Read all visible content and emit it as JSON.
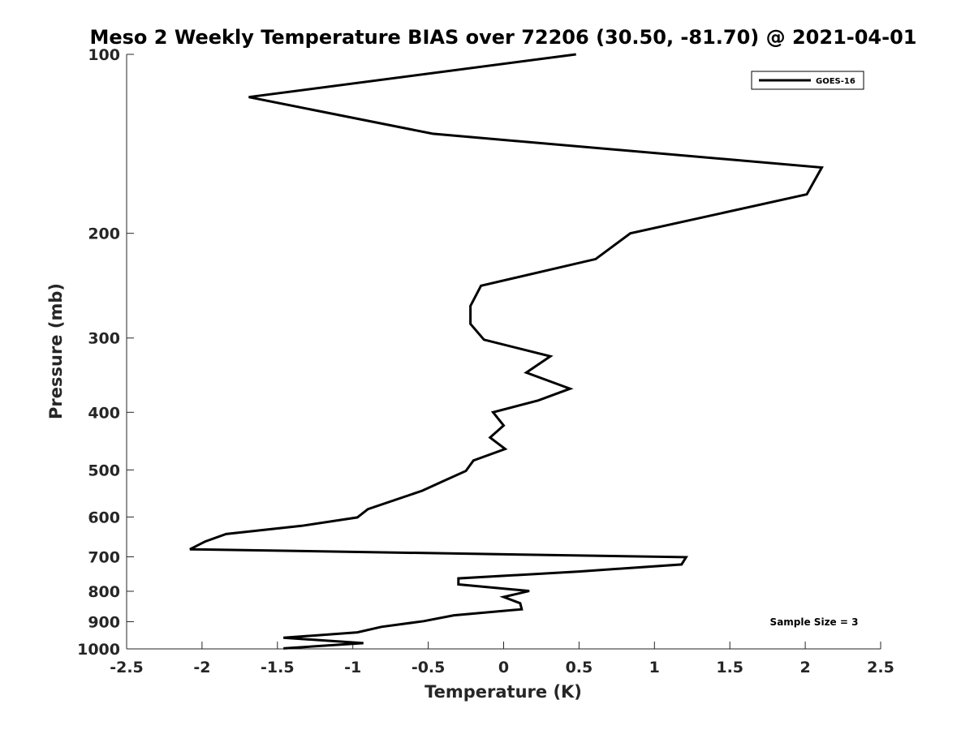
{
  "chart_data": {
    "type": "line",
    "title": "Meso 2 Weekly Temperature BIAS over 72206 (30.50, -81.70) @ 2021-04-01",
    "xlabel": "Temperature (K)",
    "ylabel": "Pressure (mb)",
    "xlim": [
      -2.5,
      2.5
    ],
    "ylim": [
      100,
      1000
    ],
    "y_scale": "log",
    "y_reversed": true,
    "grid": false,
    "legend_position": "top-right",
    "x_ticks": [
      -2.5,
      -2,
      -1.5,
      -1,
      -0.5,
      0,
      0.5,
      1,
      1.5,
      2,
      2.5
    ],
    "x_tick_labels": [
      "-2.5",
      "-2",
      "-1.5",
      "-1",
      "-0.5",
      "0",
      "0.5",
      "1",
      "1.5",
      "2",
      "2.5"
    ],
    "y_ticks": [
      100,
      200,
      300,
      400,
      500,
      600,
      700,
      800,
      900,
      1000
    ],
    "y_tick_labels": [
      "100",
      "200",
      "300",
      "400",
      "500",
      "600",
      "700",
      "800",
      "900",
      "1000"
    ],
    "annotation": "Sample Size = 3",
    "series": [
      {
        "name": "GOES-16",
        "color": "#000000",
        "points": [
          {
            "x": 0.48,
            "y": 100
          },
          {
            "x": -1.69,
            "y": 118
          },
          {
            "x": -0.47,
            "y": 136
          },
          {
            "x": 2.11,
            "y": 155
          },
          {
            "x": 2.01,
            "y": 172
          },
          {
            "x": 0.84,
            "y": 200
          },
          {
            "x": 0.61,
            "y": 221
          },
          {
            "x": -0.15,
            "y": 245
          },
          {
            "x": -0.22,
            "y": 265
          },
          {
            "x": -0.22,
            "y": 284
          },
          {
            "x": -0.13,
            "y": 302
          },
          {
            "x": 0.31,
            "y": 322
          },
          {
            "x": 0.15,
            "y": 343
          },
          {
            "x": 0.44,
            "y": 365
          },
          {
            "x": 0.23,
            "y": 382
          },
          {
            "x": -0.07,
            "y": 400
          },
          {
            "x": 0.0,
            "y": 421
          },
          {
            "x": -0.09,
            "y": 441
          },
          {
            "x": 0.01,
            "y": 461
          },
          {
            "x": -0.2,
            "y": 482
          },
          {
            "x": -0.25,
            "y": 502
          },
          {
            "x": -0.4,
            "y": 522
          },
          {
            "x": -0.54,
            "y": 542
          },
          {
            "x": -0.9,
            "y": 582
          },
          {
            "x": -0.97,
            "y": 601
          },
          {
            "x": -1.34,
            "y": 621
          },
          {
            "x": -1.84,
            "y": 641
          },
          {
            "x": -1.98,
            "y": 660
          },
          {
            "x": -2.08,
            "y": 680
          },
          {
            "x": 1.21,
            "y": 701
          },
          {
            "x": 1.18,
            "y": 721
          },
          {
            "x": 0.5,
            "y": 741
          },
          {
            "x": -0.3,
            "y": 761
          },
          {
            "x": -0.3,
            "y": 779
          },
          {
            "x": 0.17,
            "y": 799
          },
          {
            "x": 0.0,
            "y": 818
          },
          {
            "x": 0.11,
            "y": 838
          },
          {
            "x": 0.12,
            "y": 858
          },
          {
            "x": -0.33,
            "y": 878
          },
          {
            "x": -0.53,
            "y": 898
          },
          {
            "x": -0.81,
            "y": 918
          },
          {
            "x": -0.97,
            "y": 938
          },
          {
            "x": -1.46,
            "y": 958
          },
          {
            "x": -0.93,
            "y": 978
          },
          {
            "x": -1.46,
            "y": 998
          }
        ]
      }
    ]
  }
}
